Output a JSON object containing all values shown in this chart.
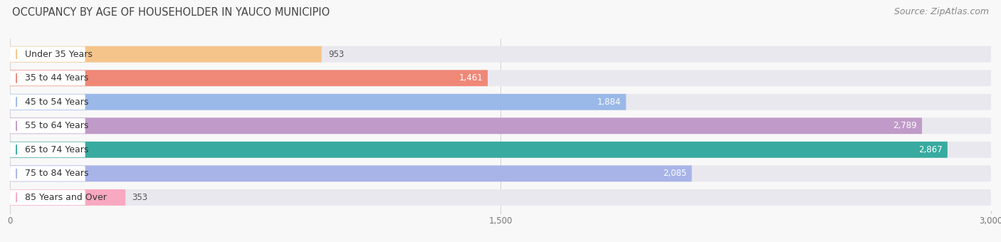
{
  "title": "OCCUPANCY BY AGE OF HOUSEHOLDER IN YAUCO MUNICIPIO",
  "source": "Source: ZipAtlas.com",
  "categories": [
    "Under 35 Years",
    "35 to 44 Years",
    "45 to 54 Years",
    "55 to 64 Years",
    "65 to 74 Years",
    "75 to 84 Years",
    "85 Years and Over"
  ],
  "values": [
    953,
    1461,
    1884,
    2789,
    2867,
    2085,
    353
  ],
  "bar_colors": [
    "#f5c48a",
    "#f08878",
    "#9ab8e8",
    "#c09ac8",
    "#38aaa0",
    "#a8b4e8",
    "#f8a8c0"
  ],
  "bar_bg_color": "#e8e8ee",
  "label_bg_color": "#ffffff",
  "xlim": [
    0,
    3000
  ],
  "xticks": [
    0,
    1500,
    3000
  ],
  "xtick_labels": [
    "0",
    "1,500",
    "3,000"
  ],
  "title_fontsize": 10.5,
  "source_fontsize": 9,
  "label_fontsize": 9,
  "value_fontsize": 8.5,
  "background_color": "#f8f8f8",
  "value_inside_threshold": 1200
}
